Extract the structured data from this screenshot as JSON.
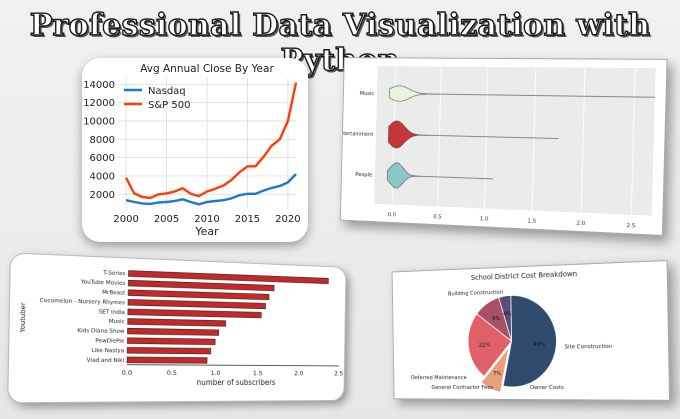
{
  "page": {
    "title": "Professional Data Visualization with Python"
  },
  "chart_data": [
    {
      "type": "line",
      "title": "Avg Annual Close By Year",
      "xlabel": "Year",
      "ylabel": "",
      "xlim": [
        1999,
        2021
      ],
      "ylim": [
        500,
        14700
      ],
      "xticks": [
        2000,
        2005,
        2010,
        2015,
        2020
      ],
      "yticks": [
        2000,
        4000,
        6000,
        8000,
        10000,
        12000,
        14000
      ],
      "legend": "top-left",
      "grid": true,
      "x": [
        2000,
        2001,
        2002,
        2003,
        2004,
        2005,
        2006,
        2007,
        2008,
        2009,
        2010,
        2011,
        2012,
        2013,
        2014,
        2015,
        2016,
        2017,
        2018,
        2019,
        2020,
        2021
      ],
      "series": [
        {
          "name": "Nasdaq",
          "color": "#1f77d4",
          "values": [
            1350,
            1150,
            1000,
            950,
            1100,
            1150,
            1250,
            1450,
            1150,
            900,
            1150,
            1250,
            1350,
            1550,
            1900,
            2050,
            2050,
            2400,
            2700,
            2900,
            3300,
            4200
          ]
        },
        {
          "name": "S&P 500",
          "color": "#ff3b0a",
          "values": [
            3800,
            2100,
            1700,
            1600,
            2000,
            2100,
            2300,
            2650,
            2050,
            1800,
            2300,
            2600,
            2950,
            3550,
            4400,
            5050,
            5050,
            6100,
            7300,
            8000,
            10000,
            14200
          ]
        }
      ]
    },
    {
      "type": "violin",
      "categories": [
        "Music",
        "Entertainment",
        "People"
      ],
      "category_colors": [
        "#e8f3de",
        "#c4353c",
        "#8cc7c4"
      ],
      "xlim": [
        -0.2,
        2.7
      ],
      "xticks": [
        0.0,
        0.5,
        1.0,
        1.5,
        2.0,
        2.5
      ],
      "grid": true
    },
    {
      "type": "bar",
      "orientation": "horizontal",
      "xlabel": "number of subscribers",
      "ylabel": "Youtuber",
      "xlim": [
        0,
        2.5
      ],
      "xticks": [
        0.0,
        0.5,
        1.0,
        1.5,
        2.0,
        2.5
      ],
      "bar_color": "#c62828",
      "categories": [
        "T-Series",
        "YouTube Movies",
        "MrBeast",
        "Cocomelon - Nursery Rhymes",
        "SET India",
        "Music",
        "Kids Diana Show",
        "PewDiePie",
        "Like Nastya",
        "Vlad and Niki"
      ],
      "values": [
        2.35,
        1.68,
        1.62,
        1.58,
        1.53,
        1.11,
        1.03,
        0.99,
        0.94,
        0.9
      ]
    },
    {
      "type": "pie",
      "title": "School District Cost Breakdown",
      "slices": [
        {
          "label": "Building Construction",
          "pct_label": "48%",
          "value": 48,
          "color": "#2f4b6e"
        },
        {
          "label": "Site Construction",
          "pct_label": "7%",
          "value": 7,
          "color": "#e8a07a"
        },
        {
          "label": "Owner Costs",
          "pct_label": "22%",
          "value": 22,
          "color": "#e0606a"
        },
        {
          "label": "General Contractor Fees",
          "pct_label": "9%",
          "value": 9,
          "color": "#a85068"
        },
        {
          "label": "Deferred Maintenance",
          "pct_label": "4%",
          "value": 4,
          "color": "#5a4c78"
        }
      ]
    }
  ]
}
